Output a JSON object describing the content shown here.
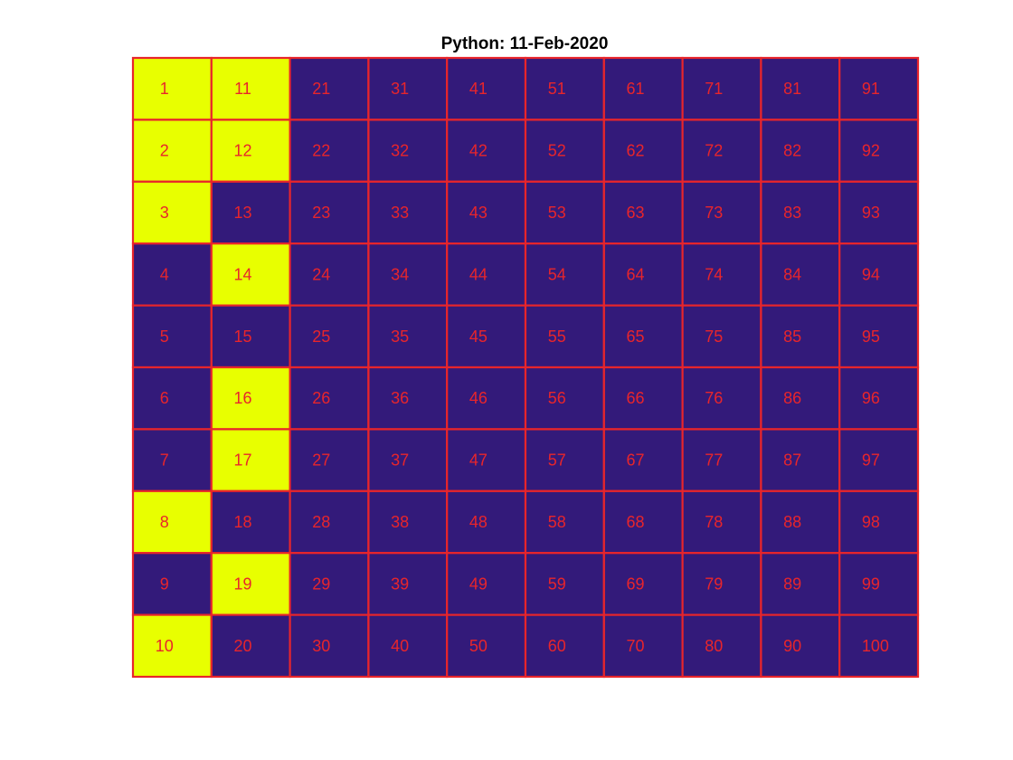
{
  "chart_data": {
    "type": "heatmap",
    "title": "Python: 11-Feb-2020",
    "rows": 10,
    "cols": 10,
    "cell_order": "column-major",
    "labels": [
      "1",
      "2",
      "3",
      "4",
      "5",
      "6",
      "7",
      "8",
      "9",
      "10",
      "11",
      "12",
      "13",
      "14",
      "15",
      "16",
      "17",
      "18",
      "19",
      "20",
      "21",
      "22",
      "23",
      "24",
      "25",
      "26",
      "27",
      "28",
      "29",
      "30",
      "31",
      "32",
      "33",
      "34",
      "35",
      "36",
      "37",
      "38",
      "39",
      "40",
      "41",
      "42",
      "43",
      "44",
      "45",
      "46",
      "47",
      "48",
      "49",
      "50",
      "51",
      "52",
      "53",
      "54",
      "55",
      "56",
      "57",
      "58",
      "59",
      "60",
      "61",
      "62",
      "63",
      "64",
      "65",
      "66",
      "67",
      "68",
      "69",
      "70",
      "71",
      "72",
      "73",
      "74",
      "75",
      "76",
      "77",
      "78",
      "79",
      "80",
      "81",
      "82",
      "83",
      "84",
      "85",
      "86",
      "87",
      "88",
      "89",
      "90",
      "91",
      "92",
      "93",
      "94",
      "95",
      "96",
      "97",
      "98",
      "99",
      "100"
    ],
    "highlighted": [
      1,
      2,
      3,
      8,
      10,
      11,
      12,
      14,
      16,
      17,
      19
    ],
    "colors": {
      "highlight": "#E8FF00",
      "base": "#331A7A",
      "grid": "#E8252B",
      "label": "#E8252B"
    },
    "grid": true,
    "legend": "none"
  }
}
